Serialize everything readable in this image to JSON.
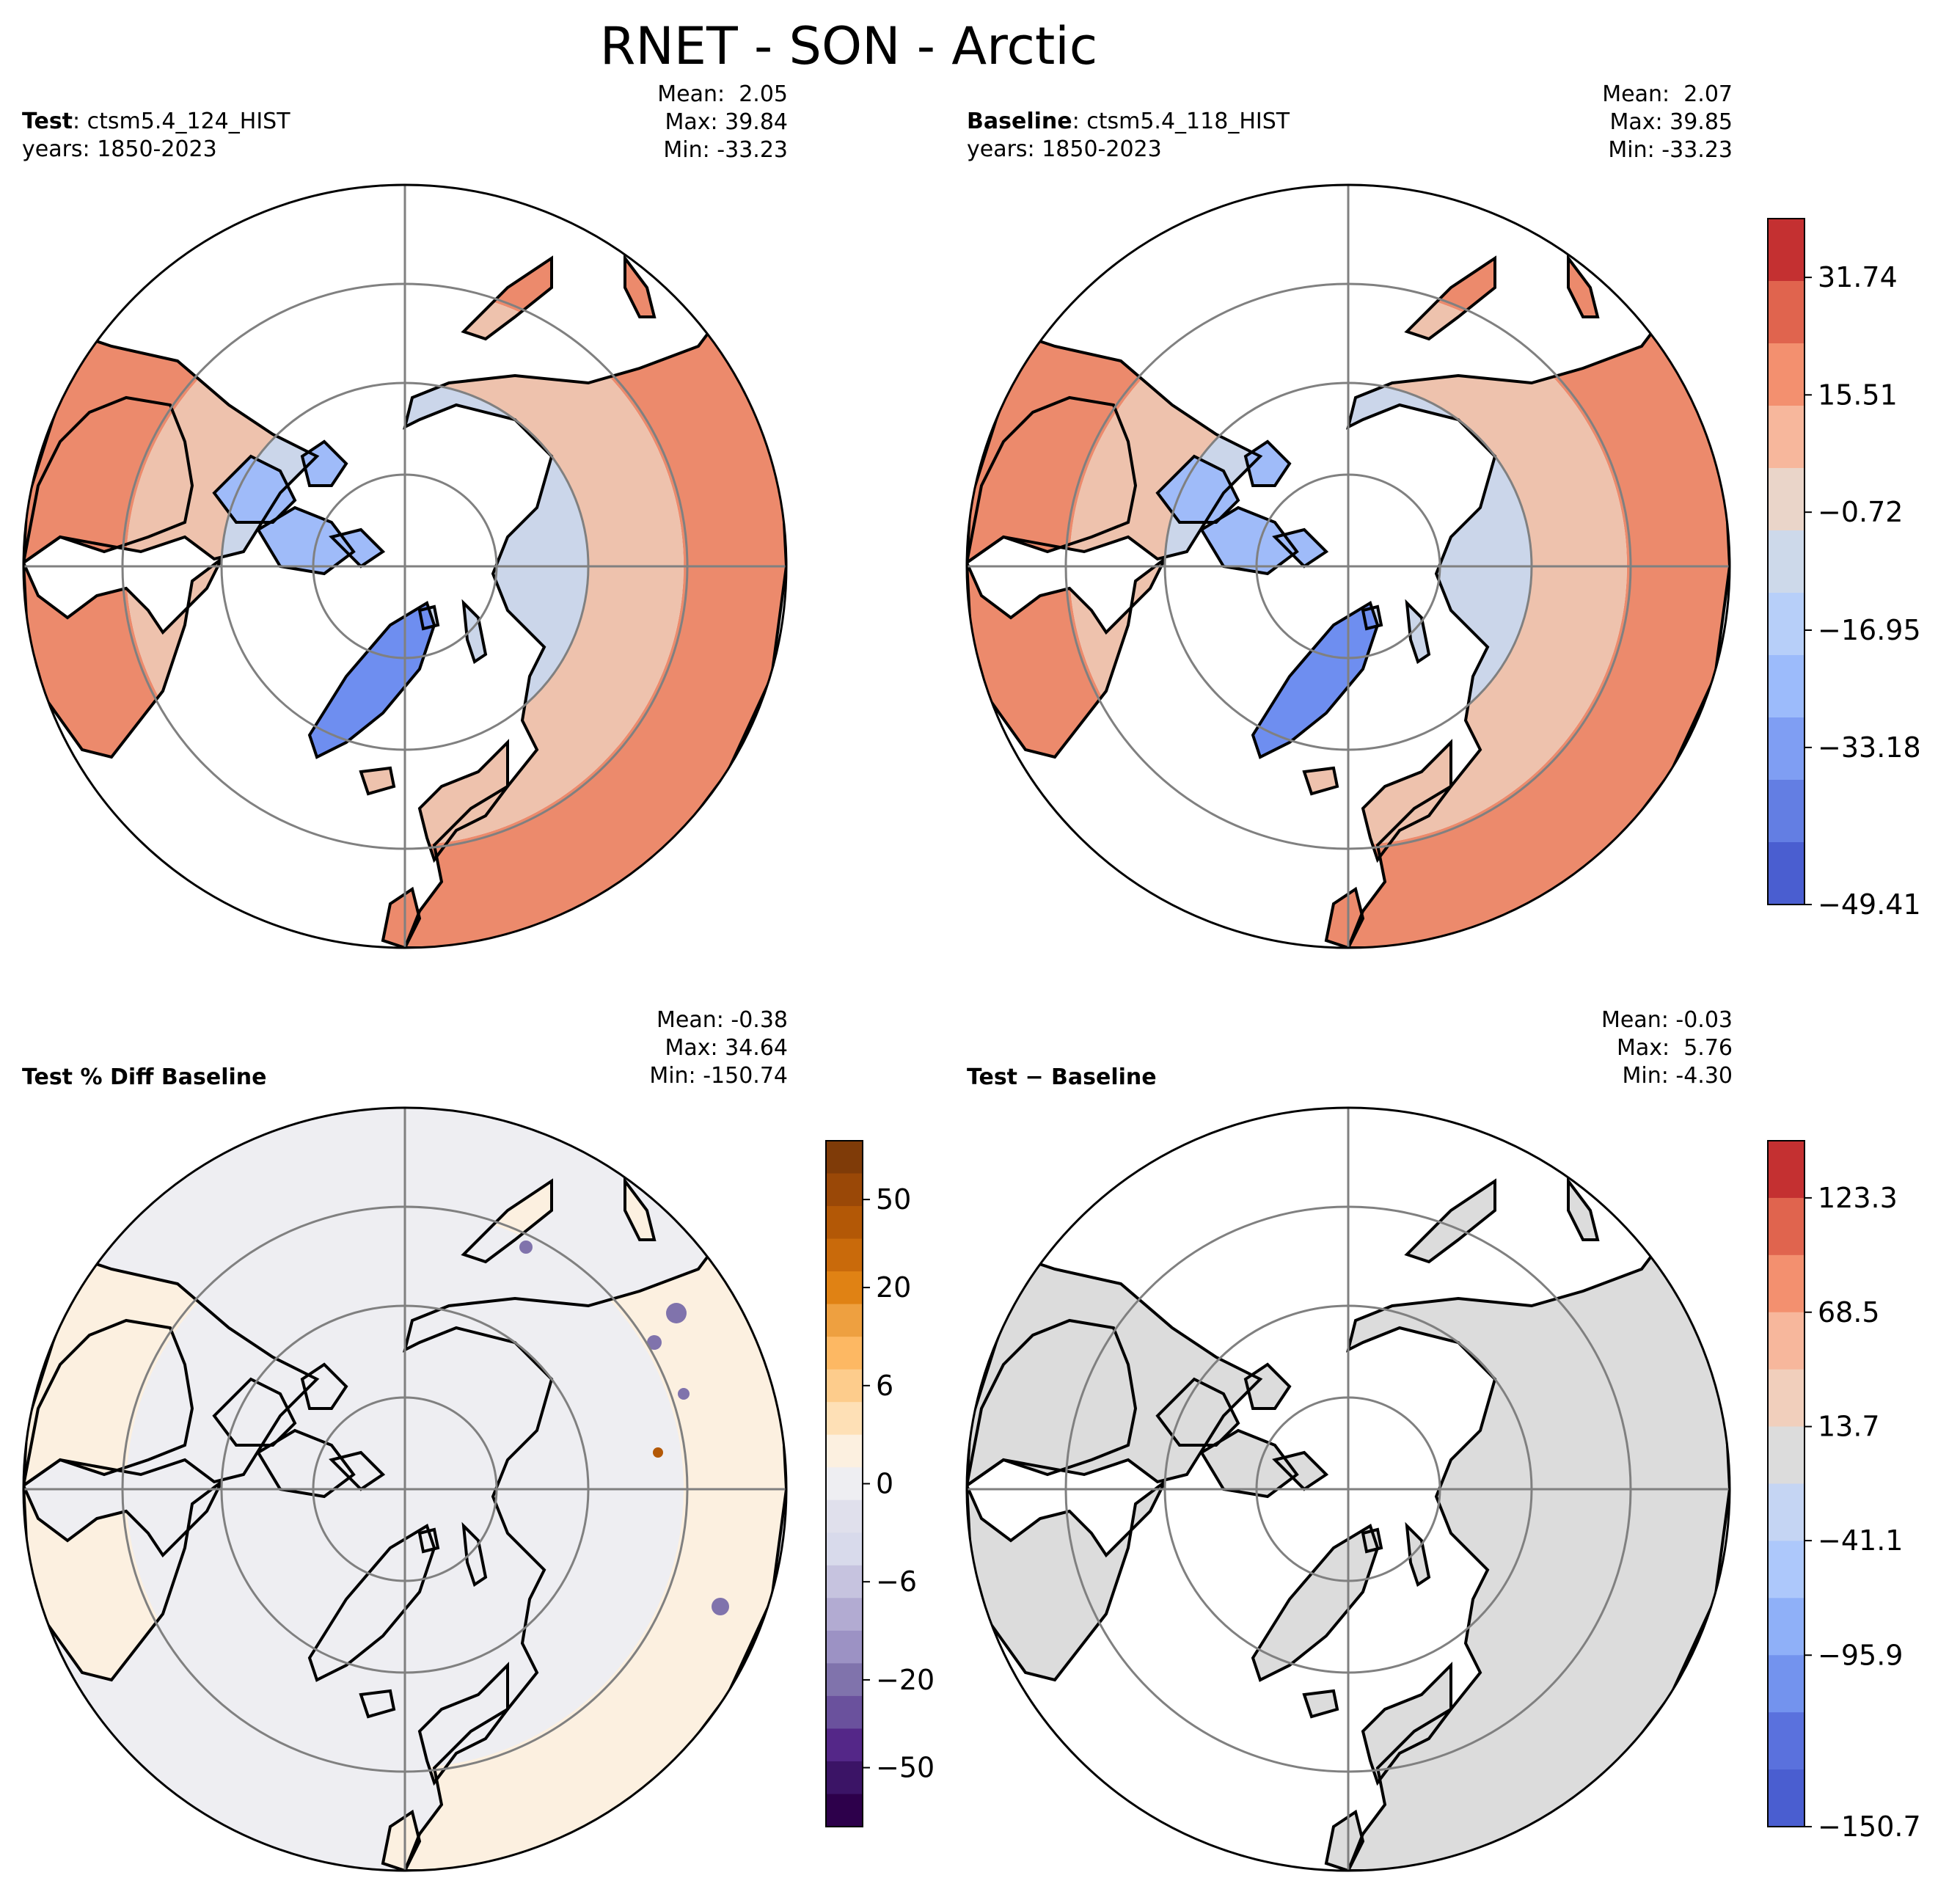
{
  "suptitle": "RNET - SON - Arctic",
  "panels": [
    {
      "label_bold": "Test",
      "label_rest": ": ctsm5.4_124_HIST",
      "years": "years: 1850-2023",
      "mean": "Mean:  2.05",
      "max": "Max: 39.84",
      "min": "Min: -33.23"
    },
    {
      "label_bold": "Baseline",
      "label_rest": ": ctsm5.4_118_HIST",
      "years": "years: 1850-2023",
      "mean": "Mean:  2.07",
      "max": "Max: 39.85",
      "min": "Min: -33.23"
    },
    {
      "label_bold": "Test % Diff Baseline",
      "label_rest": "",
      "years": "",
      "mean": "Mean: -0.38",
      "max": "Max: 34.64",
      "min": "Min: -150.74"
    },
    {
      "label_bold": "Test − Baseline",
      "label_rest": "",
      "years": "",
      "mean": "Mean: -0.03",
      "max": "Max:  5.76",
      "min": "Min: -4.30"
    }
  ],
  "colorbars": {
    "main": {
      "ticks": [
        "31.74",
        "15.51",
        "−0.72",
        "−16.95",
        "−33.18",
        "−49.41"
      ],
      "colors": [
        "#c43031",
        "#e0644e",
        "#f3906f",
        "#f7b79c",
        "#ead5c9",
        "#cdd9ea",
        "#b7cff9",
        "#9cbbfb",
        "#7f9ef3",
        "#637ee3",
        "#4a5ed0"
      ]
    },
    "pct": {
      "ticks": [
        "50",
        "20",
        "6",
        "0",
        "−6",
        "−20",
        "−50"
      ],
      "colors": [
        "#7f3b08",
        "#9a4807",
        "#b35806",
        "#c96a0b",
        "#e08214",
        "#eea040",
        "#fdb863",
        "#fdcc8c",
        "#fee0b6",
        "#fcf0e0",
        "#eeeef2",
        "#e0e0ec",
        "#d8daeb",
        "#c6c3df",
        "#b2abd2",
        "#9c92c4",
        "#8073ac",
        "#6a519d",
        "#542788",
        "#3b1466",
        "#2d004b"
      ]
    },
    "diff": {
      "ticks": [
        "123.3",
        "68.5",
        "13.7",
        "−41.1",
        "−95.9",
        "−150.7"
      ],
      "colors": [
        "#c43031",
        "#e0644e",
        "#f3906f",
        "#f7b79c",
        "#f1cfbc",
        "#dcdcdc",
        "#c5d5f3",
        "#adc8fb",
        "#8fb0f8",
        "#7393ee",
        "#5a71dd",
        "#4a5ed0"
      ]
    }
  },
  "regions": {
    "land_far": "#ec8a6c",
    "land_sub": "#eec2ad",
    "land_bor": "#cbd6ea",
    "land_cold": "#9fbbf9",
    "greenland": "#6e8ef0",
    "pct_bg": "#eeeef2",
    "pct_warm": "#fcf0e0",
    "pct_cool": "#8073ac",
    "diff_land": "#dcdcdc"
  }
}
